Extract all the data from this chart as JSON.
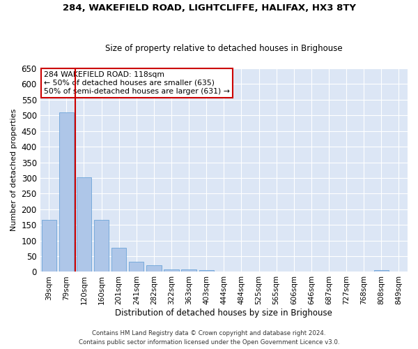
{
  "title": "284, WAKEFIELD ROAD, LIGHTCLIFFE, HALIFAX, HX3 8TY",
  "subtitle": "Size of property relative to detached houses in Brighouse",
  "xlabel": "Distribution of detached houses by size in Brighouse",
  "ylabel": "Number of detached properties",
  "categories": [
    "39sqm",
    "79sqm",
    "120sqm",
    "160sqm",
    "201sqm",
    "241sqm",
    "282sqm",
    "322sqm",
    "363sqm",
    "403sqm",
    "444sqm",
    "484sqm",
    "525sqm",
    "565sqm",
    "606sqm",
    "646sqm",
    "687sqm",
    "727sqm",
    "768sqm",
    "808sqm",
    "849sqm"
  ],
  "values": [
    165,
    510,
    302,
    167,
    77,
    32,
    20,
    8,
    8,
    5,
    1,
    1,
    1,
    0,
    0,
    0,
    0,
    0,
    0,
    5,
    0
  ],
  "bar_color": "#aec6e8",
  "bar_edge_color": "#5a9ad4",
  "background_color": "#dce6f5",
  "grid_color": "#ffffff",
  "red_line_x": 1.5,
  "annotation_line1": "284 WAKEFIELD ROAD: 118sqm",
  "annotation_line2": "← 50% of detached houses are smaller (635)",
  "annotation_line3": "50% of semi-detached houses are larger (631) →",
  "annotation_box_color": "#ffffff",
  "annotation_box_edge": "#cc0000",
  "footnote_line1": "Contains HM Land Registry data © Crown copyright and database right 2024.",
  "footnote_line2": "Contains public sector information licensed under the Open Government Licence v3.0.",
  "ylim": [
    0,
    650
  ],
  "yticks": [
    0,
    50,
    100,
    150,
    200,
    250,
    300,
    350,
    400,
    450,
    500,
    550,
    600,
    650
  ]
}
